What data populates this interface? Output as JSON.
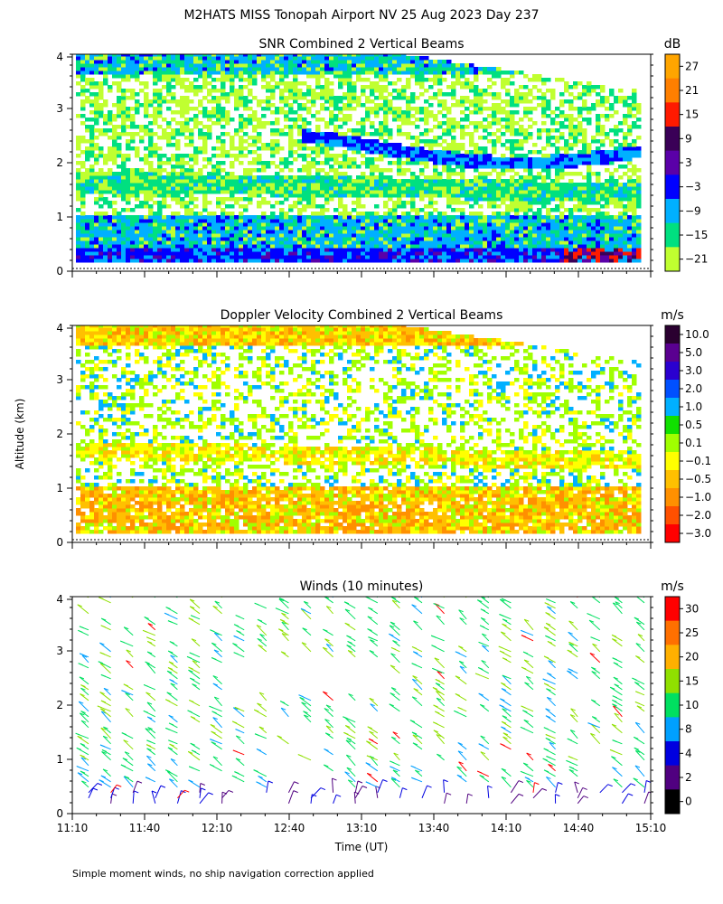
{
  "main_title": "M2HATS MISS Tonopah Airport NV  25 Aug 2023 Day 237",
  "footnote": "Simple moment winds, no ship navigation correction applied",
  "shared_axes": {
    "ylabel": "Altitude (km)",
    "xlabel": "Time (UT)",
    "x_tick_labels": [
      "11:10",
      "11:40",
      "12:10",
      "12:40",
      "13:10",
      "13:40",
      "14:10",
      "14:40",
      "15:10"
    ],
    "y_tick_labels": [
      "0",
      "1",
      "2",
      "3",
      "4"
    ]
  },
  "chart_data": [
    {
      "type": "heatmap",
      "title": "SNR Combined 2 Vertical Beams",
      "unit": "dB",
      "xlim": [
        "11:10",
        "15:10"
      ],
      "ylim": [
        0,
        4
      ],
      "colorbar_ticks": [
        "27",
        "21",
        "15",
        "9",
        "3",
        "−3",
        "−9",
        "−15",
        "−21"
      ],
      "colors": [
        "#ffa500",
        "#ff7f00",
        "#ff1a00",
        "#3a0057",
        "#5a00a8",
        "#0000ff",
        "#00b0ff",
        "#00e080",
        "#c0ff30"
      ]
    },
    {
      "type": "heatmap",
      "title": "Doppler Velocity Combined 2 Vertical Beams",
      "unit": "m/s",
      "xlim": [
        "11:10",
        "15:10"
      ],
      "ylim": [
        0,
        4
      ],
      "colorbar_ticks": [
        "10.0",
        "5.0",
        "3.0",
        "2.0",
        "1.0",
        "0.5",
        "0.1",
        "−0.1",
        "−0.5",
        "−1.0",
        "−2.0",
        "−3.0"
      ],
      "colors": [
        "#2a0030",
        "#5a0090",
        "#2a00d0",
        "#0050ff",
        "#00b0ff",
        "#10e000",
        "#a0ff00",
        "#ffff00",
        "#ffc000",
        "#ff9000",
        "#ff5000",
        "#ff0000"
      ]
    },
    {
      "type": "scatter",
      "title": "Winds (10 minutes)",
      "unit": "m/s",
      "xlim": [
        "11:10",
        "15:10"
      ],
      "ylim": [
        0,
        4
      ],
      "colorbar_ticks": [
        "30",
        "25",
        "20",
        "15",
        "10",
        "8",
        "4",
        "2",
        "0"
      ],
      "colors": [
        "#ff0000",
        "#ff7000",
        "#ffb000",
        "#90e000",
        "#00e060",
        "#00a0ff",
        "#0000e0",
        "#500080",
        "#000000"
      ]
    }
  ]
}
